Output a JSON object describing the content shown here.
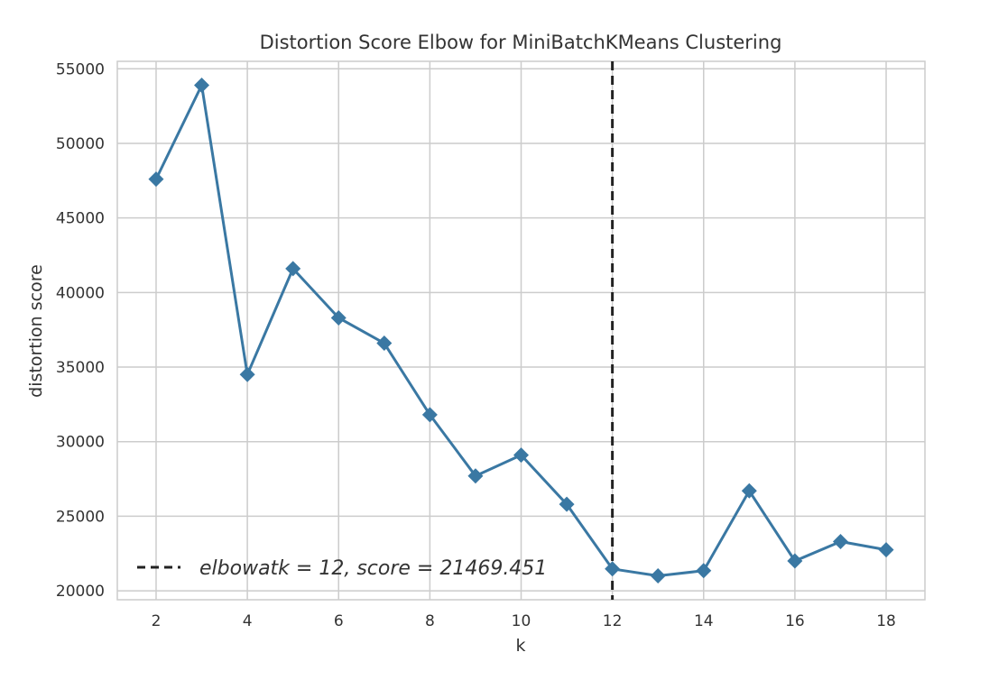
{
  "chart_data": {
    "type": "line",
    "title": "Distortion Score Elbow for MiniBatchKMeans Clustering",
    "xlabel": "k",
    "ylabel": "distortion score",
    "x": [
      2,
      3,
      4,
      5,
      6,
      7,
      8,
      9,
      10,
      11,
      12,
      13,
      14,
      15,
      16,
      17,
      18
    ],
    "series": [
      {
        "values": [
          47600,
          53900,
          34500,
          41600,
          38300,
          36600,
          31800,
          27700,
          29100,
          25800,
          21469.451,
          21000,
          21350,
          26700,
          22000,
          23300,
          22750
        ],
        "color": "#3a78a3",
        "marker": "diamond"
      }
    ],
    "xticks": [
      2,
      4,
      6,
      8,
      10,
      12,
      14,
      16,
      18
    ],
    "yticks": [
      20000,
      25000,
      30000,
      35000,
      40000,
      45000,
      50000,
      55000
    ],
    "xlim": [
      1.15,
      18.85
    ],
    "ylim": [
      19400,
      55500
    ],
    "grid": true,
    "elbow": {
      "k": 12,
      "label": "$elbow at k = 12, score = 21469.451$",
      "display_label": "elbowatk = 12, score = 21469.451",
      "line_style": "dashed",
      "color": "#222222"
    },
    "legend_position": "lower-left"
  }
}
